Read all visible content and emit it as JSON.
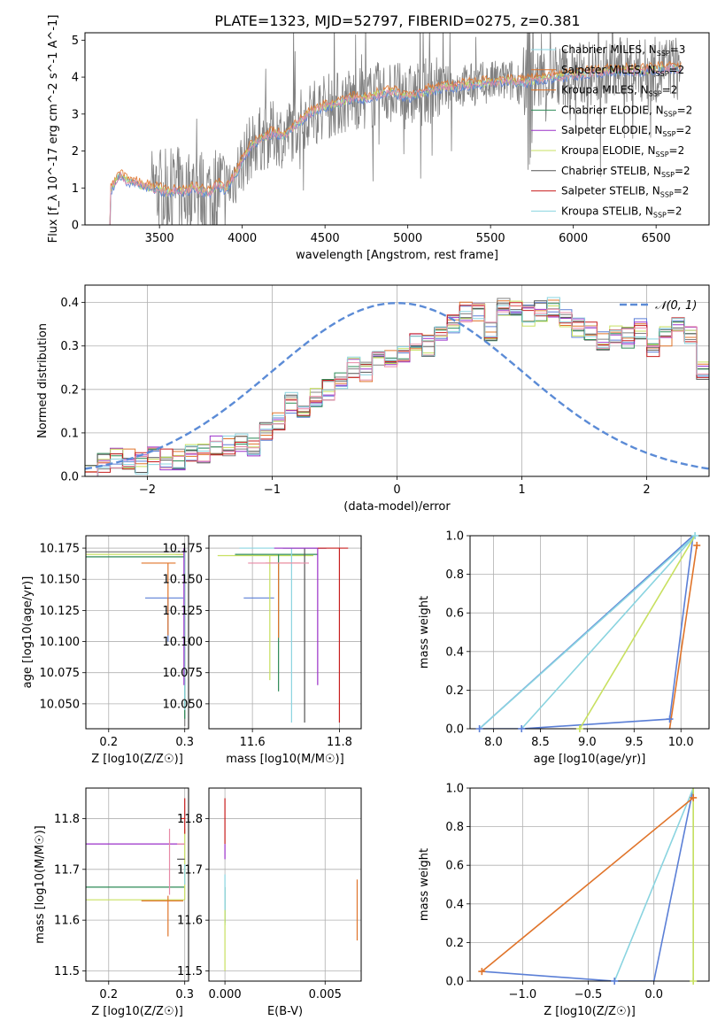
{
  "figure": {
    "title": "PLATE=1323, MJD=52797, FIBERID=0275, z=0.381"
  },
  "colors": {
    "c0": "#5b7fd6",
    "c1": "#e0742a",
    "c2": "#808080",
    "c3": "#2e8b57",
    "c4": "#9b30c9",
    "c5": "#c8e060",
    "c6": "#555555",
    "c7": "#c81e1e",
    "c8": "#8ad4e0",
    "c9": "#e88aa6",
    "m0": "#5b7fd6",
    "m1": "#e0742a",
    "m2": "#8ad4e0",
    "m3": "#c8e060"
  },
  "chart_data": [
    {
      "type": "line",
      "id": "spectrum",
      "title": "PLATE=1323, MJD=52797, FIBERID=0275, z=0.381",
      "xlabel": "wavelength [Angstrom, rest frame]",
      "ylabel": "Flux [f_λ 10^-17 erg cm^-2 s^-1 A^-1]",
      "xlim": [
        3050,
        6820
      ],
      "ylim": [
        0,
        5.2
      ],
      "xticks": [
        3500,
        4000,
        4500,
        5000,
        5500,
        6000,
        6500
      ],
      "yticks": [
        0,
        1,
        2,
        3,
        4,
        5
      ],
      "grid": false,
      "legend_position": "top-right",
      "series": [
        {
          "name": "Chabrier MILES, N_SSP=3"
        },
        {
          "name": "Salpeter MILES, N_SSP=2"
        },
        {
          "name": "Kroupa MILES, N_SSP=2"
        },
        {
          "name": "Chabrier ELODIE, N_SSP=2"
        },
        {
          "name": "Salpeter ELODIE, N_SSP=2"
        },
        {
          "name": "Kroupa ELODIE, N_SSP=2"
        },
        {
          "name": "Chabrier STELIB, N_SSP=2"
        },
        {
          "name": "Salpeter STELIB, N_SSP=2"
        },
        {
          "name": "Kroupa STELIB, N_SSP=2"
        }
      ],
      "continuum": {
        "x": [
          3200,
          3260,
          3300,
          3350,
          3400,
          3450,
          3500,
          3550,
          3600,
          3650,
          3700,
          3750,
          3800,
          3850,
          3900,
          3950,
          4000,
          4050,
          4100,
          4150,
          4200,
          4250,
          4300,
          4350,
          4400,
          4450,
          4500,
          4550,
          4600,
          4650,
          4700,
          4750,
          4800,
          4850,
          4900,
          4950,
          5000,
          5100,
          5200,
          5300,
          5400,
          5500,
          5600,
          5700,
          5800,
          5900,
          6000,
          6100,
          6200,
          6300,
          6400,
          6500,
          6600,
          6650
        ],
        "y": [
          0.9,
          1.35,
          1.2,
          1.15,
          1.05,
          1.0,
          0.95,
          0.85,
          0.95,
          0.9,
          1.0,
          0.9,
          0.85,
          1.1,
          0.95,
          1.3,
          1.7,
          2.1,
          2.3,
          2.4,
          2.5,
          2.4,
          2.6,
          2.8,
          3.0,
          3.1,
          3.2,
          3.25,
          3.3,
          3.4,
          3.45,
          3.4,
          3.5,
          3.55,
          3.6,
          3.5,
          3.45,
          3.6,
          3.7,
          3.75,
          3.8,
          3.85,
          3.9,
          3.85,
          3.95,
          4.0,
          4.05,
          4.1,
          4.15,
          4.2,
          4.15,
          4.2,
          4.25,
          4.2
        ]
      }
    },
    {
      "type": "histogram",
      "id": "residuals",
      "xlabel": "(data-model)/error",
      "ylabel": "Normed distribution",
      "xlim": [
        -2.5,
        2.5
      ],
      "ylim": [
        0,
        0.44
      ],
      "xticks": [
        -2,
        -1,
        0,
        1,
        2
      ],
      "yticks": [
        0.0,
        0.1,
        0.2,
        0.3,
        0.4
      ],
      "grid": true,
      "legend_position": "top-right",
      "reference": {
        "name": "𝒩(0, 1)",
        "mean": 0,
        "sigma": 1
      },
      "bin_edges_start": -2.5,
      "bin_width": 0.1,
      "approx_bin_values": [
        0.01,
        0.03,
        0.04,
        0.04,
        0.03,
        0.05,
        0.04,
        0.04,
        0.06,
        0.05,
        0.07,
        0.07,
        0.08,
        0.07,
        0.1,
        0.13,
        0.17,
        0.16,
        0.18,
        0.2,
        0.22,
        0.25,
        0.24,
        0.27,
        0.27,
        0.28,
        0.31,
        0.3,
        0.33,
        0.35,
        0.38,
        0.38,
        0.33,
        0.39,
        0.39,
        0.37,
        0.38,
        0.39,
        0.36,
        0.34,
        0.33,
        0.31,
        0.33,
        0.32,
        0.34,
        0.3,
        0.32,
        0.35,
        0.32,
        0.24,
        0.23,
        0.21,
        0.19,
        0.2,
        0.17,
        0.15,
        0.14,
        0.12,
        0.11,
        0.1,
        0.09
      ]
    },
    {
      "type": "errorbar",
      "id": "age_vs_Z",
      "xlabel": "Z [log10(Z/Z☉)]",
      "ylabel": "age [log10(age/yr)]",
      "xlim": [
        0.17,
        0.305
      ],
      "ylim": [
        10.03,
        10.185
      ],
      "xticks": [
        0.2,
        0.3
      ],
      "yticks": [
        10.05,
        10.075,
        10.1,
        10.125,
        10.15,
        10.175
      ],
      "points": [
        {
          "c": "c0",
          "x": 0.278,
          "xerr": [
            0.03,
            0.02
          ],
          "y": 10.135,
          "yerr": [
            0.035,
            0.0
          ]
        },
        {
          "c": "c1",
          "x": 0.278,
          "xerr": [
            0.035,
            0.01
          ],
          "y": 10.163,
          "yerr": [
            0.058,
            0.0
          ]
        },
        {
          "c": "c1",
          "x": 0.3,
          "xerr": [
            0.012,
            0.0
          ],
          "y": 10.17,
          "yerr": [
            0.0,
            0.0
          ]
        },
        {
          "c": "c2",
          "x": 0.3,
          "xerr": [
            0.13,
            0.0
          ],
          "y": 10.172,
          "yerr": [
            0.14,
            0.002
          ]
        },
        {
          "c": "c3",
          "x": 0.3,
          "xerr": [
            0.13,
            0.0
          ],
          "y": 10.168,
          "yerr": [
            0.13,
            0.002
          ]
        },
        {
          "c": "c5",
          "x": 0.3,
          "xerr": [
            0.13,
            0.0
          ],
          "y": 10.17,
          "yerr": [
            0.1,
            0.002
          ]
        },
        {
          "c": "c8",
          "x": 0.3,
          "xerr": [
            0.0,
            0.0
          ],
          "y": 10.175,
          "yerr": [
            0.13,
            0.0
          ]
        },
        {
          "c": "c4",
          "x": 0.299,
          "xerr": [
            0.0,
            0.0
          ],
          "y": 10.175,
          "yerr": [
            0.11,
            0.0
          ]
        }
      ]
    },
    {
      "type": "errorbar",
      "id": "age_vs_mass",
      "xlabel": "mass [log10(M/M☉)]",
      "ylabel": "",
      "xlim": [
        11.5,
        11.85
      ],
      "ylim": [
        10.03,
        10.185
      ],
      "xticks": [
        11.6,
        11.8
      ],
      "yticks": [
        10.05,
        10.075,
        10.1,
        10.125,
        10.15,
        10.175
      ],
      "points": [
        {
          "c": "c0",
          "x": 11.6,
          "xerr": [
            0.02,
            0.05
          ],
          "y": 10.135,
          "yerr": [
            0.0,
            0.0
          ]
        },
        {
          "c": "c5",
          "x": 11.64,
          "xerr": [
            0.12,
            0.1
          ],
          "y": 10.169,
          "yerr": [
            0.1,
            0.0
          ]
        },
        {
          "c": "c3",
          "x": 11.66,
          "xerr": [
            0.1,
            0.09
          ],
          "y": 10.17,
          "yerr": [
            0.11,
            0.0
          ]
        },
        {
          "c": "c1",
          "x": 11.66,
          "xerr": [
            0.03,
            0.05
          ],
          "y": 10.163,
          "yerr": [
            0.06,
            0.0
          ]
        },
        {
          "c": "c8",
          "x": 11.69,
          "xerr": [
            0.12,
            0.06
          ],
          "y": 10.175,
          "yerr": [
            0.14,
            0.0
          ]
        },
        {
          "c": "c6",
          "x": 11.72,
          "xerr": [
            0.05,
            0.05
          ],
          "y": 10.175,
          "yerr": [
            0.14,
            0.0
          ]
        },
        {
          "c": "c4",
          "x": 11.75,
          "xerr": [
            0.1,
            0.02
          ],
          "y": 10.175,
          "yerr": [
            0.11,
            0.0
          ]
        },
        {
          "c": "c7",
          "x": 11.8,
          "xerr": [
            0.05,
            0.02
          ],
          "y": 10.175,
          "yerr": [
            0.14,
            0.0
          ]
        },
        {
          "c": "c9",
          "x": 11.66,
          "xerr": [
            0.07,
            0.07
          ],
          "y": 10.163,
          "yerr": [
            0.0,
            0.0
          ]
        }
      ]
    },
    {
      "type": "line",
      "id": "cum_age",
      "xlabel": "age [log10(age/yr)]",
      "ylabel": "mass weight",
      "xlim": [
        7.75,
        10.3
      ],
      "ylim": [
        0,
        1.0
      ],
      "xticks": [
        8.0,
        8.5,
        9.0,
        9.5,
        10.0
      ],
      "yticks": [
        0.0,
        0.2,
        0.4,
        0.6,
        0.8,
        1.0
      ],
      "grid": true,
      "series": [
        {
          "c": "m0",
          "x": [
            7.85,
            8.3,
            9.88,
            10.13,
            7.85
          ],
          "y": [
            0.0,
            0.0,
            0.05,
            1.0,
            0.0
          ]
        },
        {
          "c": "m2",
          "x": [
            8.3,
            10.15,
            7.85,
            10.15
          ],
          "y": [
            0.0,
            1.0,
            0.0,
            1.0
          ]
        },
        {
          "c": "m3",
          "x": [
            8.92,
            10.15,
            8.92,
            10.15
          ],
          "y": [
            0.0,
            1.0,
            0.0,
            1.0
          ]
        },
        {
          "c": "m1",
          "x": [
            9.88,
            10.17,
            10.17,
            9.88
          ],
          "y": [
            0.0,
            0.95,
            0.95,
            0.0
          ]
        }
      ],
      "markers": [
        {
          "c": "m0",
          "x": 7.85,
          "y": 0.0
        },
        {
          "c": "m0",
          "x": 8.3,
          "y": 0.0
        },
        {
          "c": "m0",
          "x": 9.88,
          "y": 0.05
        },
        {
          "c": "m3",
          "x": 8.92,
          "y": 0.0
        },
        {
          "c": "m1",
          "x": 10.17,
          "y": 0.95
        },
        {
          "c": "m2",
          "x": 10.15,
          "y": 1.0
        }
      ]
    },
    {
      "type": "errorbar",
      "id": "mass_vs_Z",
      "xlabel": "Z [log10(Z/Z☉)]",
      "ylabel": "mass [log10(M/M☉)]",
      "xlim": [
        0.17,
        0.305
      ],
      "ylim": [
        11.48,
        11.86
      ],
      "xticks": [
        0.2,
        0.3
      ],
      "yticks": [
        11.5,
        11.6,
        11.7,
        11.8
      ],
      "points": [
        {
          "c": "c4",
          "x": 0.3,
          "xerr": [
            0.13,
            0.0
          ],
          "y": 11.75,
          "yerr": [
            0.0,
            0.0
          ]
        },
        {
          "c": "c3",
          "x": 0.3,
          "xerr": [
            0.13,
            0.0
          ],
          "y": 11.665,
          "yerr": [
            0.0,
            0.0
          ]
        },
        {
          "c": "c5",
          "x": 0.3,
          "xerr": [
            0.13,
            0.0
          ],
          "y": 11.64,
          "yerr": [
            0.0,
            0.14
          ]
        },
        {
          "c": "c1",
          "x": 0.278,
          "xerr": [
            0.035,
            0.02
          ],
          "y": 11.638,
          "yerr": [
            0.07,
            0.01
          ]
        },
        {
          "c": "c7",
          "x": 0.3,
          "xerr": [
            0.005,
            0.0
          ],
          "y": 11.8,
          "yerr": [
            0.03,
            0.04
          ]
        },
        {
          "c": "c9",
          "x": 0.28,
          "xerr": [
            0.0,
            0.0
          ],
          "y": 11.72,
          "yerr": [
            0.07,
            0.06
          ]
        },
        {
          "c": "c6",
          "x": 0.3,
          "xerr": [
            0.01,
            0.0
          ],
          "y": 11.72,
          "yerr": [
            0.0,
            0.0
          ]
        },
        {
          "c": "c8",
          "x": 0.3,
          "xerr": [
            0.0,
            0.0
          ],
          "y": 11.69,
          "yerr": [
            0.02,
            0.02
          ]
        },
        {
          "c": "c9",
          "x": 0.3,
          "xerr": [
            0.01,
            0.0
          ],
          "y": 11.75,
          "yerr": [
            0.0,
            0.0
          ]
        }
      ]
    },
    {
      "type": "errorbar",
      "id": "mass_vs_ebv",
      "xlabel": "E(B-V)",
      "ylabel": "",
      "xlim": [
        -0.0008,
        0.0068
      ],
      "ylim": [
        11.48,
        11.86
      ],
      "xticks": [
        0.0,
        0.005
      ],
      "xticklabels": [
        "0.000",
        "0.005"
      ],
      "yticks": [
        11.5,
        11.6,
        11.7,
        11.8
      ],
      "points": [
        {
          "c": "c7",
          "x": 0.0,
          "xerr": [
            0.0,
            0.0
          ],
          "y": 11.8,
          "yerr": [
            0.05,
            0.04
          ]
        },
        {
          "c": "c4",
          "x": 0.0,
          "xerr": [
            0.0,
            0.0
          ],
          "y": 11.75,
          "yerr": [
            0.03,
            0.0
          ]
        },
        {
          "c": "c3",
          "x": 0.0,
          "xerr": [
            0.0,
            0.0
          ],
          "y": 11.665,
          "yerr": [
            0.07,
            0.0
          ]
        },
        {
          "c": "c8",
          "x": 0.0,
          "xerr": [
            0.0,
            0.0
          ],
          "y": 11.69,
          "yerr": [
            0.1,
            0.0
          ]
        },
        {
          "c": "c5",
          "x": 0.0,
          "xerr": [
            0.0,
            0.0
          ],
          "y": 11.62,
          "yerr": [
            0.12,
            0.0
          ]
        },
        {
          "c": "c1",
          "x": 0.0066,
          "xerr": [
            0.0,
            0.0
          ],
          "y": 11.62,
          "yerr": [
            0.06,
            0.06
          ]
        }
      ]
    },
    {
      "type": "line",
      "id": "cum_Z",
      "xlabel": "Z [log10(Z/Z☉)]",
      "ylabel": "mass weight",
      "xlim": [
        -1.4,
        0.42
      ],
      "ylim": [
        0,
        1.0
      ],
      "xticks": [
        -1.0,
        -0.5,
        0.0
      ],
      "yticks": [
        0.0,
        0.2,
        0.4,
        0.6,
        0.8,
        1.0
      ],
      "grid": true,
      "series": [
        {
          "c": "m0",
          "x": [
            -1.31,
            -0.3,
            0.0,
            0.3
          ],
          "y": [
            0.05,
            0.0,
            0.0,
            1.0
          ]
        },
        {
          "c": "m2",
          "x": [
            -0.3,
            0.3,
            0.3
          ],
          "y": [
            0.0,
            1.0,
            0.0
          ]
        },
        {
          "c": "m3",
          "x": [
            0.3,
            0.3,
            0.3
          ],
          "y": [
            0.0,
            1.0,
            0.0
          ]
        },
        {
          "c": "m1",
          "x": [
            -1.31,
            0.3
          ],
          "y": [
            0.05,
            0.95
          ]
        }
      ],
      "markers": [
        {
          "c": "m1",
          "x": -1.31,
          "y": 0.05
        },
        {
          "c": "m0",
          "x": -0.3,
          "y": 0.0
        },
        {
          "c": "m3",
          "x": 0.3,
          "y": 0.0
        },
        {
          "c": "m1",
          "x": 0.3,
          "y": 0.95
        }
      ]
    }
  ]
}
